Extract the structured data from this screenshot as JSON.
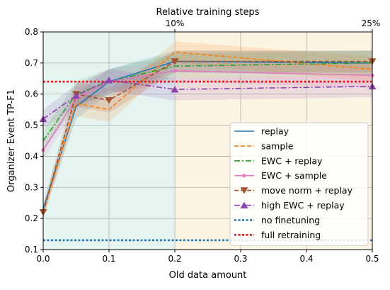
{
  "chart_data": {
    "type": "line",
    "title": "Relative training steps",
    "xlabel": "Old data amount",
    "ylabel": "Organizer Event TP-F1",
    "xlim": [
      0,
      0.5
    ],
    "ylim": [
      0.1,
      0.8
    ],
    "xticks": [
      0,
      0.1,
      0.2,
      0.3,
      0.4,
      0.5
    ],
    "xtick_labels": [
      "0.0",
      "0.1",
      "0.2",
      "0.3",
      "0.4",
      "0.5"
    ],
    "yticks": [
      0.1,
      0.2,
      0.3,
      0.4,
      0.5,
      0.6,
      0.7,
      0.8
    ],
    "ytick_labels": [
      "0.1",
      "0.2",
      "0.3",
      "0.4",
      "0.5",
      "0.6",
      "0.7",
      "0.8"
    ],
    "top_axis": {
      "ticks": [
        0.2,
        0.5
      ],
      "labels": [
        "10%",
        "25%"
      ]
    },
    "shaded_regions": [
      {
        "x": [
          0,
          0.2
        ],
        "color": "#e6f4f1"
      },
      {
        "x": [
          0.2,
          0.5
        ],
        "color": "#fdf5e4"
      }
    ],
    "grid": true,
    "legend_position": "lower-right",
    "series": [
      {
        "name": "replay",
        "color": "#1f77b4",
        "style": "solid",
        "marker": "none",
        "x": [
          0,
          0.05,
          0.1,
          0.2,
          0.5
        ],
        "y": [
          0.23,
          0.56,
          0.64,
          0.705,
          0.7
        ],
        "band": [
          [
            0.21,
            0.25
          ],
          [
            0.52,
            0.6
          ],
          [
            0.6,
            0.68
          ],
          [
            0.67,
            0.74
          ],
          [
            0.66,
            0.74
          ]
        ]
      },
      {
        "name": "sample",
        "color": "#ff7f0e",
        "style": "dashed",
        "marker": "none",
        "x": [
          0,
          0.05,
          0.1,
          0.2,
          0.5
        ],
        "y": [
          0.22,
          0.57,
          0.55,
          0.735,
          0.68
        ],
        "band": [
          [
            0.2,
            0.24
          ],
          [
            0.53,
            0.61
          ],
          [
            0.51,
            0.59
          ],
          [
            0.7,
            0.77
          ],
          [
            0.64,
            0.72
          ]
        ]
      },
      {
        "name": "EWC + replay",
        "color": "#2ca02c",
        "style": "dashdot",
        "marker": "none",
        "x": [
          0,
          0.05,
          0.1,
          0.2,
          0.5
        ],
        "y": [
          0.45,
          0.6,
          0.64,
          0.69,
          0.7
        ],
        "band": [
          [
            0.42,
            0.48
          ],
          [
            0.56,
            0.64
          ],
          [
            0.6,
            0.68
          ],
          [
            0.65,
            0.73
          ],
          [
            0.66,
            0.74
          ]
        ]
      },
      {
        "name": "EWC + sample",
        "color": "#e377c2",
        "style": "solid",
        "marker": "dot",
        "x": [
          0,
          0.05,
          0.1,
          0.2,
          0.5
        ],
        "y": [
          0.42,
          0.585,
          0.64,
          0.675,
          0.66
        ],
        "band": [
          [
            0.39,
            0.45
          ],
          [
            0.55,
            0.62
          ],
          [
            0.6,
            0.68
          ],
          [
            0.64,
            0.71
          ],
          [
            0.62,
            0.7
          ]
        ]
      },
      {
        "name": "move norm + replay",
        "color": "#a0522d",
        "style": "dashed",
        "marker": "triangle-down",
        "x": [
          0,
          0.05,
          0.1,
          0.2,
          0.5
        ],
        "y": [
          0.22,
          0.6,
          0.58,
          0.705,
          0.705
        ],
        "band": [
          [
            0.2,
            0.24
          ],
          [
            0.56,
            0.64
          ],
          [
            0.54,
            0.62
          ],
          [
            0.67,
            0.74
          ],
          [
            0.67,
            0.74
          ]
        ]
      },
      {
        "name": "high EWC + replay",
        "color": "#8e44ad",
        "style": "dashdot",
        "marker": "triangle-up",
        "x": [
          0,
          0.05,
          0.1,
          0.2,
          0.5
        ],
        "y": [
          0.52,
          0.595,
          0.645,
          0.615,
          0.625
        ],
        "band": [
          [
            0.49,
            0.55
          ],
          [
            0.56,
            0.63
          ],
          [
            0.61,
            0.68
          ],
          [
            0.58,
            0.65
          ],
          [
            0.59,
            0.66
          ]
        ]
      }
    ],
    "reference_lines": [
      {
        "name": "no finetuning",
        "color": "#1f77b4",
        "style": "dotted",
        "y": 0.13
      },
      {
        "name": "full retraining",
        "color": "#e31a1c",
        "style": "dotted",
        "y": 0.64
      }
    ]
  }
}
